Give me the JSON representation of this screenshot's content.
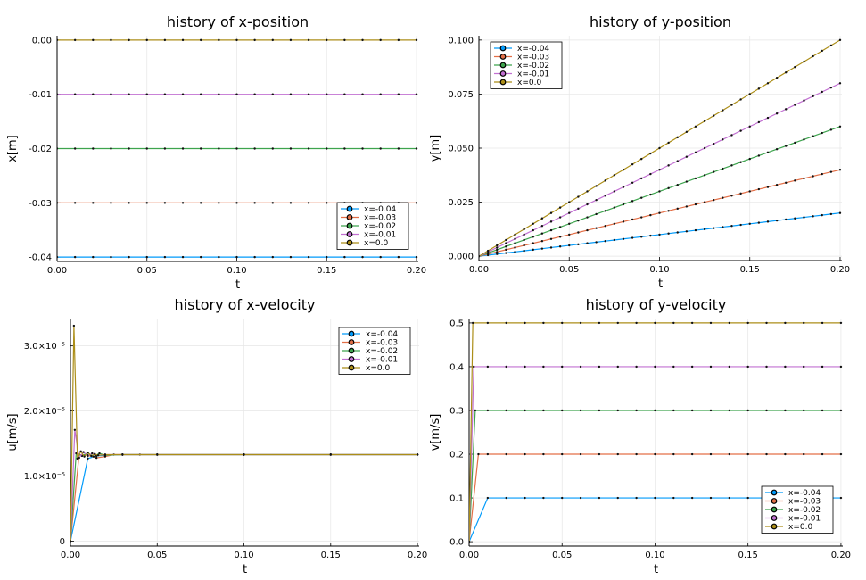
{
  "colors": {
    "x=-0.04": "#009AFA",
    "x=-0.03": "#E36F47",
    "x=-0.02": "#3EA44E",
    "x=-0.01": "#C271D2",
    "x=0.0": "#AC8E18"
  },
  "chart_data": [
    {
      "type": "line",
      "title": "history of x-position",
      "xlabel": "t",
      "ylabel": "x[m]",
      "xlim": [
        0,
        0.201
      ],
      "ylim": [
        -0.0408,
        0.0008
      ],
      "xticks": [
        0,
        0.05,
        0.1,
        0.15,
        0.2
      ],
      "xtick_labels": [
        "0.00",
        "0.05",
        "0.10",
        "0.15",
        "0.20"
      ],
      "yticks": [
        0,
        -0.01,
        -0.02,
        -0.03,
        -0.04
      ],
      "ytick_labels": [
        "0.00",
        "-0.01",
        "-0.02",
        "-0.03",
        "-0.04"
      ],
      "grid": true,
      "legend_position": "bottom-right",
      "series": [
        {
          "name": "x=-0.04",
          "form": "const",
          "value": -0.04
        },
        {
          "name": "x=-0.03",
          "form": "const",
          "value": -0.03
        },
        {
          "name": "x=-0.02",
          "form": "const",
          "value": -0.02
        },
        {
          "name": "x=-0.01",
          "form": "const",
          "value": -0.01
        },
        {
          "name": "x=0.0",
          "form": "const",
          "value": 0.0
        }
      ]
    },
    {
      "type": "line",
      "title": "history of y-position",
      "xlabel": "t",
      "ylabel": "y[m]",
      "xlim": [
        0,
        0.201
      ],
      "ylim": [
        -0.002,
        0.102
      ],
      "xticks": [
        0,
        0.05,
        0.1,
        0.15,
        0.2
      ],
      "xtick_labels": [
        "0.00",
        "0.05",
        "0.10",
        "0.15",
        "0.20"
      ],
      "yticks": [
        0,
        0.025,
        0.05,
        0.075,
        0.1
      ],
      "ytick_labels": [
        "0.000",
        "0.025",
        "0.050",
        "0.075",
        "0.100"
      ],
      "grid": true,
      "legend_position": "top-left",
      "series": [
        {
          "name": "x=-0.04",
          "form": "linear",
          "slope": 0.1
        },
        {
          "name": "x=-0.03",
          "form": "linear",
          "slope": 0.2
        },
        {
          "name": "x=-0.02",
          "form": "linear",
          "slope": 0.3
        },
        {
          "name": "x=-0.01",
          "form": "linear",
          "slope": 0.4
        },
        {
          "name": "x=0.0",
          "form": "linear",
          "slope": 0.5
        }
      ]
    },
    {
      "type": "line",
      "title": "history of x-velocity",
      "xlabel": "t",
      "ylabel": "u[m/s]",
      "xlim": [
        0,
        0.201
      ],
      "ylim": [
        -7.5e-07,
        3.42e-05
      ],
      "xticks": [
        0,
        0.05,
        0.1,
        0.15,
        0.2
      ],
      "xtick_labels": [
        "0.00",
        "0.05",
        "0.10",
        "0.15",
        "0.20"
      ],
      "yticks": [
        0,
        1e-05,
        2e-05,
        3e-05
      ],
      "ytick_labels": [
        "0",
        "1.0×10⁻⁵",
        "2.0×10⁻⁵",
        "3.0×10⁻⁵"
      ],
      "grid": true,
      "legend_position": "top-right",
      "series": [
        {
          "name": "x=-0.04",
          "form": "points",
          "x": [
            0,
            0.01,
            0.015,
            0.02,
            0.03,
            0.04,
            0.05,
            0.1,
            0.15,
            0.2
          ],
          "y": [
            0,
            1.27e-05,
            1.31e-05,
            1.32e-05,
            1.33e-05,
            1.33e-05,
            1.33e-05,
            1.33e-05,
            1.33e-05,
            1.33e-05
          ]
        },
        {
          "name": "x=-0.03",
          "form": "points",
          "x": [
            0,
            0.005,
            0.01,
            0.015,
            0.02,
            0.025,
            0.03,
            0.05,
            0.1,
            0.15,
            0.2
          ],
          "y": [
            0,
            1.33e-05,
            1.32e-05,
            1.28e-05,
            1.3e-05,
            1.33e-05,
            1.33e-05,
            1.33e-05,
            1.33e-05,
            1.33e-05,
            1.33e-05
          ]
        },
        {
          "name": "x=-0.02",
          "form": "points",
          "x": [
            0,
            0.0033,
            0.0067,
            0.01,
            0.0133,
            0.0167,
            0.02,
            0.03,
            0.05,
            0.1,
            0.15,
            0.2
          ],
          "y": [
            0,
            1.35e-05,
            1.31e-05,
            1.36e-05,
            1.3e-05,
            1.35e-05,
            1.32e-05,
            1.33e-05,
            1.33e-05,
            1.33e-05,
            1.33e-05,
            1.33e-05
          ]
        },
        {
          "name": "x=-0.01",
          "form": "points",
          "x": [
            0,
            0.0025,
            0.005,
            0.0075,
            0.01,
            0.0125,
            0.015,
            0.02,
            0.03,
            0.05,
            0.1,
            0.15,
            0.2
          ],
          "y": [
            0,
            1.71e-05,
            1.28e-05,
            1.37e-05,
            1.31e-05,
            1.35e-05,
            1.32e-05,
            1.33e-05,
            1.33e-05,
            1.33e-05,
            1.33e-05,
            1.33e-05,
            1.33e-05
          ]
        },
        {
          "name": "x=0.0",
          "form": "points",
          "x": [
            0,
            0.002,
            0.004,
            0.006,
            0.008,
            0.01,
            0.012,
            0.014,
            0.016,
            0.02,
            0.03,
            0.05,
            0.1,
            0.15,
            0.2
          ],
          "y": [
            0,
            3.31e-05,
            1.27e-05,
            1.38e-05,
            1.3e-05,
            1.36e-05,
            1.31e-05,
            1.34e-05,
            1.32e-05,
            1.33e-05,
            1.33e-05,
            1.33e-05,
            1.33e-05,
            1.33e-05,
            1.33e-05
          ]
        }
      ]
    },
    {
      "type": "line",
      "title": "history of y-velocity",
      "xlabel": "t",
      "ylabel": "v[m/s]",
      "xlim": [
        0,
        0.201
      ],
      "ylim": [
        -0.01,
        0.51
      ],
      "xticks": [
        0,
        0.05,
        0.1,
        0.15,
        0.2
      ],
      "xtick_labels": [
        "0.00",
        "0.05",
        "0.10",
        "0.15",
        "0.20"
      ],
      "yticks": [
        0,
        0.1,
        0.2,
        0.3,
        0.4,
        0.5
      ],
      "ytick_labels": [
        "0.0",
        "0.1",
        "0.2",
        "0.3",
        "0.4",
        "0.5"
      ],
      "grid": true,
      "legend_position": "bottom-right",
      "series": [
        {
          "name": "x=-0.04",
          "form": "step",
          "value": 0.1,
          "t0": 0.01
        },
        {
          "name": "x=-0.03",
          "form": "step",
          "value": 0.2,
          "t0": 0.005
        },
        {
          "name": "x=-0.02",
          "form": "step",
          "value": 0.3,
          "t0": 0.0033
        },
        {
          "name": "x=-0.01",
          "form": "step",
          "value": 0.4,
          "t0": 0.0025
        },
        {
          "name": "x=0.0",
          "form": "step",
          "value": 0.5,
          "t0": 0.002
        }
      ]
    }
  ]
}
